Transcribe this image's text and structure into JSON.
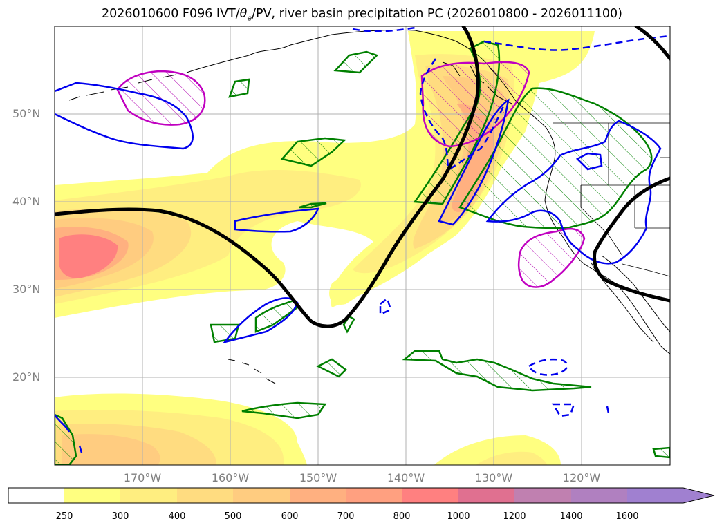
{
  "figure": {
    "title_prefix": "2026010600 F096 IVT/",
    "title_theta": "θ",
    "title_theta_sub": "e",
    "title_suffix": "/PV, river basin precipitation PC (2026010800 - 2026011100)"
  },
  "chart_data": {
    "type": "map",
    "projection": "plate-carree",
    "lon_range": [
      -180,
      -110
    ],
    "lat_range": [
      10,
      60
    ],
    "lat_ticks": [
      {
        "value": 50,
        "label": "50°N"
      },
      {
        "value": 40,
        "label": "40°N"
      },
      {
        "value": 30,
        "label": "30°N"
      },
      {
        "value": 20,
        "label": "20°N"
      }
    ],
    "lon_ticks": [
      {
        "value": -170,
        "label": "170°W"
      },
      {
        "value": -160,
        "label": "160°W"
      },
      {
        "value": -150,
        "label": "150°W"
      },
      {
        "value": -140,
        "label": "140°W"
      },
      {
        "value": -130,
        "label": "130°W"
      },
      {
        "value": -120,
        "label": "120°W"
      }
    ],
    "colorbar": {
      "variable": "IVT",
      "levels": [
        250,
        300,
        400,
        500,
        600,
        700,
        800,
        1000,
        1200,
        1400,
        1600
      ],
      "labels": [
        "250",
        "300",
        "400",
        "500",
        "600",
        "700",
        "800",
        "1000",
        "1200",
        "1400",
        "1600"
      ],
      "colors": [
        "#ffffff",
        "#ffff80",
        "#ffee80",
        "#ffdc80",
        "#ffcc80",
        "#ffb080",
        "#ffa080",
        "#ff8080",
        "#e07090",
        "#c080b0",
        "#b080c0",
        "#a080d0"
      ],
      "extend": "max"
    },
    "ivt_maxima": [
      {
        "lon": -177,
        "lat": 34.5,
        "value": 900
      },
      {
        "lon": -131,
        "lat": 43,
        "value": 600
      }
    ],
    "pv_contour_color": "#000000",
    "overlay_colors": {
      "green": "#008000",
      "blue": "#0000ee",
      "magenta": "#c000c0"
    }
  }
}
